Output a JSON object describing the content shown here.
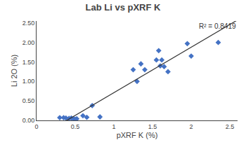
{
  "chart_data": {
    "type": "scatter",
    "title": "Lab Li vs pXRF K",
    "xlabel": "pXRF K (%)",
    "ylabel": "Li 2O (%)",
    "annotations": [
      "R² = 0.8419"
    ],
    "x": [
      0.3,
      0.35,
      0.38,
      0.42,
      0.45,
      0.48,
      0.5,
      0.52,
      0.6,
      0.65,
      0.72,
      0.82,
      1.25,
      1.3,
      1.35,
      1.4,
      1.55,
      1.58,
      1.6,
      1.62,
      1.65,
      1.7,
      1.95,
      2.0,
      2.35
    ],
    "values": [
      0.07,
      0.07,
      0.06,
      0.05,
      0.06,
      0.04,
      0.03,
      0.04,
      0.12,
      0.08,
      0.38,
      0.09,
      1.3,
      1.0,
      1.45,
      1.3,
      1.55,
      1.79,
      1.4,
      1.55,
      1.38,
      1.25,
      1.97,
      1.65,
      2.0
    ],
    "color": "#4472C4",
    "marker": "diamond",
    "trendline": {
      "type": "line",
      "x": [
        0.2,
        2.6
      ],
      "values": [
        -0.2219,
        2.5769
      ],
      "color": "#333333"
    },
    "xlim": [
      0.0,
      2.6
    ],
    "ylim": [
      0.0,
      2.55
    ],
    "xticks": [
      0,
      0.5,
      1,
      1.5,
      2,
      2.5
    ],
    "yticks": [
      {
        "value": 0.0,
        "label": "0.00"
      },
      {
        "value": 0.5,
        "label": "0.50"
      },
      {
        "value": 1.0,
        "label": "1.00"
      },
      {
        "value": 1.5,
        "label": "1.50"
      },
      {
        "value": 2.0,
        "label": "2.00"
      },
      {
        "value": 2.5,
        "label": "2.50"
      }
    ],
    "grid": false
  }
}
